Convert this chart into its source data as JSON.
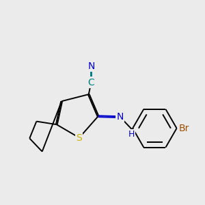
{
  "background_color": "#ebebeb",
  "bond_color": "#000000",
  "atom_colors": {
    "S": "#c8b400",
    "N": "#0000cd",
    "C_label": "#008080",
    "Br": "#a05000",
    "H": "#0000cd"
  },
  "font_size_atom": 10,
  "figure_size": [
    3.0,
    3.0
  ],
  "lw": 1.4
}
